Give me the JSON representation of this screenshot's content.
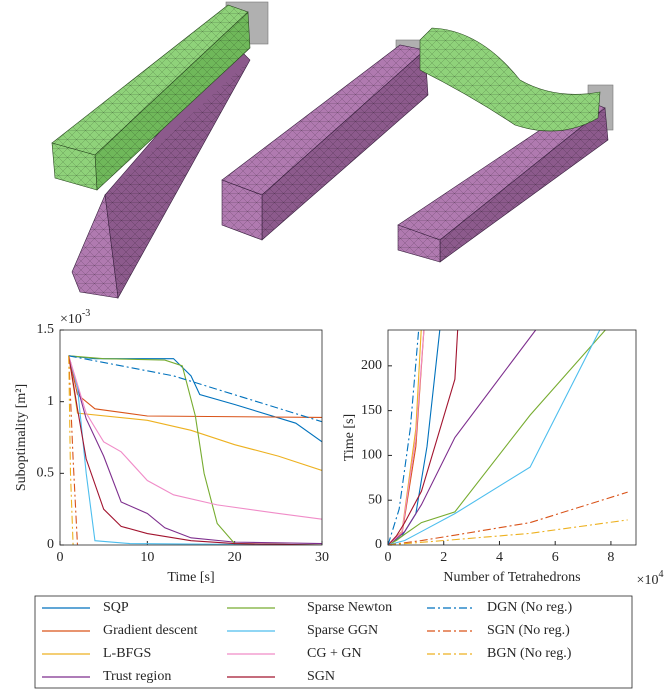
{
  "chart_data": [
    {
      "type": "line",
      "y_label": "Suboptimality [m²]",
      "x_label": "Time [s]",
      "y_multiplier": {
        "base": "×10",
        "exponent": "-3"
      },
      "xlim": [
        0,
        30
      ],
      "xticks": [
        0,
        10,
        20,
        30
      ],
      "ylim": [
        0,
        1.5
      ],
      "yticks": [
        0,
        0.5,
        1,
        1.5
      ],
      "series": [
        {
          "name": "SQP",
          "color": "#0072BD",
          "dash": "solid",
          "x": [
            1,
            4,
            13,
            15,
            16,
            20,
            27,
            30
          ],
          "values": [
            1.32,
            1.3,
            1.3,
            1.18,
            1.05,
            0.98,
            0.85,
            0.72
          ]
        },
        {
          "name": "Gradient descent",
          "color": "#D95319",
          "dash": "solid",
          "x": [
            1,
            2,
            4,
            10,
            30
          ],
          "values": [
            1.32,
            1.05,
            0.95,
            0.9,
            0.89
          ]
        },
        {
          "name": "L-BFGS",
          "color": "#EDB120",
          "dash": "solid",
          "x": [
            1,
            2,
            10,
            15,
            20,
            25,
            30
          ],
          "values": [
            1.32,
            0.92,
            0.87,
            0.8,
            0.7,
            0.62,
            0.52
          ]
        },
        {
          "name": "Trust region",
          "color": "#7E2F8E",
          "dash": "solid",
          "x": [
            1,
            3,
            5,
            7,
            10,
            12,
            15,
            20,
            30
          ],
          "values": [
            1.32,
            0.88,
            0.62,
            0.3,
            0.22,
            0.12,
            0.05,
            0.02,
            0.01
          ]
        },
        {
          "name": "Sparse Newton",
          "color": "#77AC30",
          "dash": "solid",
          "x": [
            1,
            5,
            12,
            14,
            15.5,
            16.5,
            18,
            20,
            30
          ],
          "values": [
            1.32,
            1.3,
            1.29,
            1.25,
            0.9,
            0.5,
            0.15,
            0.01,
            0
          ]
        },
        {
          "name": "Sparse GGN",
          "color": "#4DBEEE",
          "dash": "solid",
          "x": [
            1,
            2,
            3,
            4,
            8,
            30
          ],
          "values": [
            1.32,
            1.1,
            0.5,
            0.03,
            0.01,
            0
          ]
        },
        {
          "name": "CG + GN",
          "color": "#F08CC8",
          "dash": "solid",
          "x": [
            1,
            3,
            5,
            7,
            10,
            13,
            18,
            25,
            30
          ],
          "values": [
            1.32,
            0.92,
            0.72,
            0.65,
            0.45,
            0.35,
            0.28,
            0.22,
            0.18
          ]
        },
        {
          "name": "SGN",
          "color": "#A2142F",
          "dash": "solid",
          "x": [
            1,
            2,
            3,
            5,
            7,
            10,
            15,
            20,
            30
          ],
          "values": [
            1.32,
            0.95,
            0.6,
            0.25,
            0.13,
            0.08,
            0.03,
            0.01,
            0
          ]
        },
        {
          "name": "DGN (No reg.)",
          "color": "#0072BD",
          "dash": "dashdot",
          "x": [
            1,
            13,
            30
          ],
          "values": [
            1.32,
            1.18,
            0.86
          ]
        },
        {
          "name": "SGN (No reg.)",
          "color": "#D95319",
          "dash": "dashdot",
          "x": [
            1,
            1.5,
            2
          ],
          "values": [
            1.32,
            0.6,
            0
          ]
        },
        {
          "name": "BGN (No reg.)",
          "color": "#EDB120",
          "dash": "dashdot",
          "x": [
            1,
            1.2,
            1.5
          ],
          "values": [
            1.32,
            0.5,
            0
          ]
        }
      ]
    },
    {
      "type": "line",
      "y_label": "Time [s]",
      "x_label": "Number of Tetrahedrons",
      "x_multiplier": {
        "base": "×10",
        "exponent": "4"
      },
      "xlim": [
        0,
        8.9
      ],
      "xticks": [
        0,
        2,
        4,
        6,
        8
      ],
      "ylim": [
        0,
        240
      ],
      "yticks": [
        0,
        50,
        100,
        150,
        200
      ],
      "series": [
        {
          "color": "#0072BD",
          "dash": "solid",
          "x": [
            0,
            0.5,
            1,
            1.4,
            2
          ],
          "values": [
            0,
            10,
            35,
            110,
            280
          ]
        },
        {
          "color": "#D95319",
          "dash": "solid",
          "x": [
            0,
            0.5,
            1,
            1.3
          ],
          "values": [
            0,
            12,
            110,
            245
          ]
        },
        {
          "color": "#EDB120",
          "dash": "solid",
          "x": [
            0,
            0.5,
            1,
            1.2
          ],
          "values": [
            0,
            15,
            130,
            245
          ]
        },
        {
          "color": "#7E2F8E",
          "dash": "solid",
          "x": [
            0,
            0.6,
            1.2,
            2.4,
            5.3
          ],
          "values": [
            0,
            15,
            45,
            120,
            240
          ]
        },
        {
          "color": "#77AC30",
          "dash": "solid",
          "x": [
            0,
            0.3,
            0.6,
            1.2,
            2.4,
            5.1,
            7.8
          ],
          "values": [
            0,
            5,
            12,
            25,
            37,
            145,
            240
          ]
        },
        {
          "color": "#4DBEEE",
          "dash": "solid",
          "x": [
            0,
            0.6,
            1.2,
            2.4,
            5.1,
            7.6
          ],
          "values": [
            0,
            5,
            15,
            35,
            87,
            240
          ]
        },
        {
          "color": "#F08CC8",
          "dash": "solid",
          "x": [
            0,
            0.5,
            1,
            1.3
          ],
          "values": [
            0,
            14,
            120,
            245
          ]
        },
        {
          "color": "#A2142F",
          "dash": "solid",
          "x": [
            0,
            0.3,
            0.6,
            1.2,
            2.4,
            2.5
          ],
          "values": [
            0,
            10,
            25,
            60,
            185,
            240
          ]
        },
        {
          "color": "#0072BD",
          "dash": "dashdot",
          "x": [
            0,
            0.4,
            0.8,
            1.1
          ],
          "values": [
            0,
            40,
            130,
            240
          ]
        },
        {
          "color": "#D95319",
          "dash": "dashdot",
          "x": [
            0,
            1.2,
            2.4,
            5.1,
            8.6
          ],
          "values": [
            0,
            5,
            11,
            25,
            59
          ]
        },
        {
          "color": "#EDB120",
          "dash": "dashdot",
          "x": [
            0,
            2.4,
            5.1,
            8.6
          ],
          "values": [
            0,
            6,
            13,
            28
          ]
        }
      ]
    }
  ]
}
